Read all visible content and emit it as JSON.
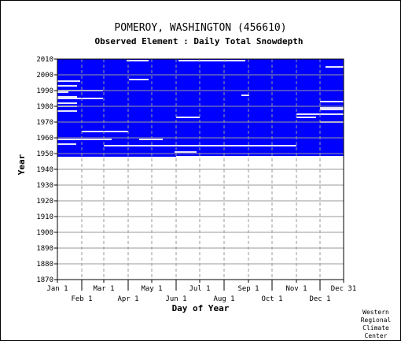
{
  "chart_data": {
    "type": "heatmap",
    "title": "POMEROY, WASHINGTON   (456610)",
    "subtitle": "Observed Element : Daily Total Snowdepth",
    "xlabel": "Day of Year",
    "ylabel": "Year",
    "credit": [
      "Western",
      "Regional",
      "Climate",
      "Center"
    ],
    "ylim": [
      1870,
      2010
    ],
    "y_ticks": [
      1870,
      1880,
      1890,
      1900,
      1910,
      1920,
      1930,
      1940,
      1950,
      1960,
      1970,
      1980,
      1990,
      2000,
      2010
    ],
    "x_ticks_top": [
      {
        "label": "Jan 1",
        "day": 1
      },
      {
        "label": "Mar 1",
        "day": 60
      },
      {
        "label": "May 1",
        "day": 121
      },
      {
        "label": "Jul 1",
        "day": 182
      },
      {
        "label": "Sep 1",
        "day": 244
      },
      {
        "label": "Nov 1",
        "day": 305
      },
      {
        "label": "Dec 31",
        "day": 365
      }
    ],
    "x_ticks_bottom": [
      {
        "label": "Feb 1",
        "day": 32
      },
      {
        "label": "Apr 1",
        "day": 91
      },
      {
        "label": "Jun 1",
        "day": 152
      },
      {
        "label": "Aug 1",
        "day": 213
      },
      {
        "label": "Oct 1",
        "day": 274
      },
      {
        "label": "Dec 1",
        "day": 335
      }
    ],
    "data_color": "#0000ff",
    "data_period": [
      1948,
      2010
    ],
    "missing_segments": [
      {
        "year": 2009,
        "start": 89,
        "end": 117
      },
      {
        "year": 2009,
        "start": 155,
        "end": 240
      },
      {
        "year": 2005,
        "start": 342,
        "end": 365
      },
      {
        "year": 1997,
        "start": 92,
        "end": 117
      },
      {
        "year": 1996,
        "start": 1,
        "end": 30
      },
      {
        "year": 1993,
        "start": 1,
        "end": 26
      },
      {
        "year": 1990,
        "start": 1,
        "end": 59
      },
      {
        "year": 1989,
        "start": 1,
        "end": 15
      },
      {
        "year": 1987,
        "start": 235,
        "end": 245
      },
      {
        "year": 1986,
        "start": 1,
        "end": 26
      },
      {
        "year": 1985,
        "start": 1,
        "end": 59
      },
      {
        "year": 1983,
        "start": 335,
        "end": 365
      },
      {
        "year": 1982,
        "start": 1,
        "end": 26
      },
      {
        "year": 1980,
        "start": 1,
        "end": 26
      },
      {
        "year": 1979,
        "start": 335,
        "end": 365
      },
      {
        "year": 1978,
        "start": 335,
        "end": 365
      },
      {
        "year": 1977,
        "start": 1,
        "end": 26
      },
      {
        "year": 1975,
        "start": 305,
        "end": 365
      },
      {
        "year": 1973,
        "start": 152,
        "end": 182
      },
      {
        "year": 1973,
        "start": 305,
        "end": 330
      },
      {
        "year": 1970,
        "start": 335,
        "end": 365
      },
      {
        "year": 1964,
        "start": 32,
        "end": 91
      },
      {
        "year": 1959,
        "start": 1,
        "end": 70
      },
      {
        "year": 1959,
        "start": 105,
        "end": 135
      },
      {
        "year": 1956,
        "start": 1,
        "end": 25
      },
      {
        "year": 1955,
        "start": 60,
        "end": 305
      },
      {
        "year": 1951,
        "start": 150,
        "end": 178
      },
      {
        "year": 1948,
        "start": 152,
        "end": 365
      }
    ]
  }
}
